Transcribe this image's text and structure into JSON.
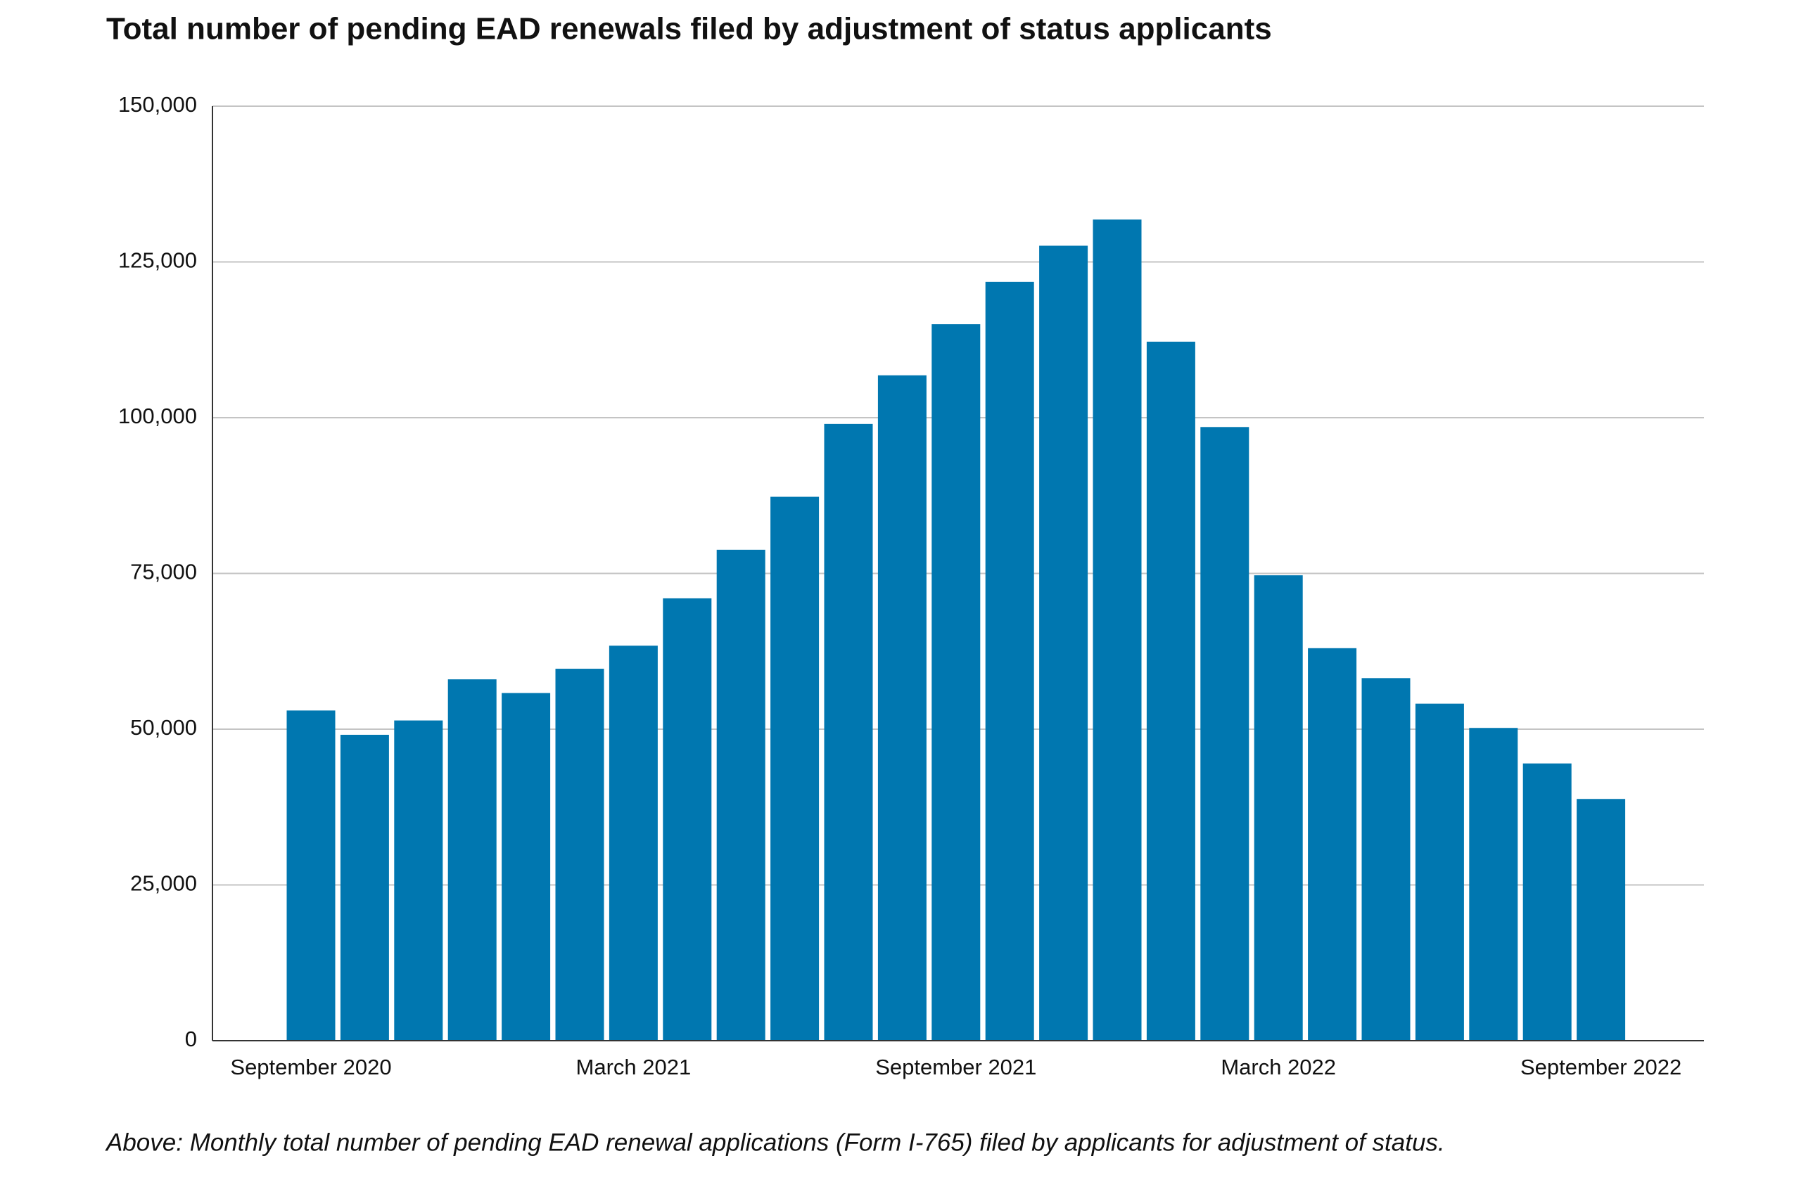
{
  "chart_data": {
    "type": "bar",
    "title": "Total number of pending EAD renewals filed by adjustment of status applicants",
    "caption": "Above: Monthly total number of pending EAD renewal applications (Form I-765) filed by applicants for adjustment of status.",
    "categories": [
      "September 2020",
      null,
      null,
      null,
      null,
      null,
      "March 2021",
      null,
      null,
      null,
      null,
      null,
      "September 2021",
      null,
      null,
      null,
      null,
      null,
      "March 2022",
      null,
      null,
      null,
      null,
      null,
      "September 2022"
    ],
    "values": [
      53000,
      49100,
      51400,
      58000,
      55800,
      59700,
      63400,
      71000,
      78800,
      87300,
      99000,
      106800,
      115000,
      121800,
      127600,
      131800,
      112200,
      98500,
      74700,
      63000,
      58200,
      54100,
      50200,
      44500,
      38800
    ],
    "color": "#0077b0",
    "ylim": [
      0,
      150000
    ],
    "yticks": [
      0,
      {
        "value": 25000,
        "label": "25,000"
      },
      {
        "value": 50000,
        "label": "50,000"
      },
      {
        "value": 75000,
        "label": "75,000"
      },
      {
        "value": 100000,
        "label": "100,000"
      },
      {
        "value": 125000,
        "label": "125,000"
      },
      {
        "value": 150000,
        "label": "150,000"
      }
    ],
    "grid": true
  }
}
